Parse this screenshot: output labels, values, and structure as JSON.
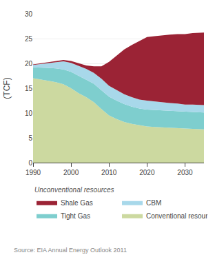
{
  "chart_data": {
    "type": "area",
    "stacked": true,
    "y_label": "(TCF)",
    "annotations": [
      "Unconventional resources",
      "Source: EIA Annual Energy Outlook 2011"
    ],
    "x": [
      1990,
      1992,
      1994,
      1996,
      1998,
      2000,
      2002,
      2004,
      2006,
      2008,
      2010,
      2012,
      2014,
      2016,
      2018,
      2020,
      2022,
      2024,
      2026,
      2028,
      2030,
      2032,
      2035
    ],
    "series": [
      {
        "name": "Conventional resources",
        "color": "#ccd9a0",
        "values": [
          17.0,
          16.8,
          16.5,
          16.2,
          15.8,
          15.0,
          14.0,
          13.2,
          12.2,
          10.8,
          9.5,
          8.8,
          8.2,
          7.8,
          7.5,
          7.3,
          7.2,
          7.1,
          7.0,
          6.9,
          6.8,
          6.8,
          6.7
        ]
      },
      {
        "name": "Tight Gas",
        "color": "#7ecece",
        "values": [
          2.2,
          2.4,
          2.6,
          2.8,
          3.0,
          3.3,
          3.5,
          3.6,
          3.7,
          3.8,
          3.8,
          3.7,
          3.6,
          3.5,
          3.4,
          3.4,
          3.4,
          3.4,
          3.4,
          3.4,
          3.4,
          3.4,
          3.4
        ]
      },
      {
        "name": "CBM",
        "color": "#a8d8ea",
        "values": [
          0.5,
          0.7,
          1.0,
          1.3,
          1.6,
          1.8,
          2.0,
          2.1,
          2.2,
          2.3,
          2.2,
          2.1,
          2.0,
          1.9,
          1.8,
          1.8,
          1.7,
          1.7,
          1.6,
          1.6,
          1.5,
          1.5,
          1.5
        ]
      },
      {
        "name": "Shale Gas",
        "color": "#9b2335",
        "values": [
          0.1,
          0.1,
          0.2,
          0.2,
          0.3,
          0.4,
          0.5,
          0.7,
          1.3,
          2.5,
          4.8,
          7.0,
          9.0,
          10.5,
          11.8,
          12.8,
          13.2,
          13.5,
          13.8,
          14.0,
          14.2,
          14.4,
          14.6
        ]
      }
    ],
    "xlim": [
      1990,
      2035
    ],
    "xticks": [
      1990,
      2000,
      2010,
      2020,
      2030
    ],
    "ylim": [
      0,
      30
    ],
    "yticks": [
      0,
      5,
      10,
      15,
      20,
      25,
      30
    ],
    "grid": true,
    "legend": "bottom"
  }
}
